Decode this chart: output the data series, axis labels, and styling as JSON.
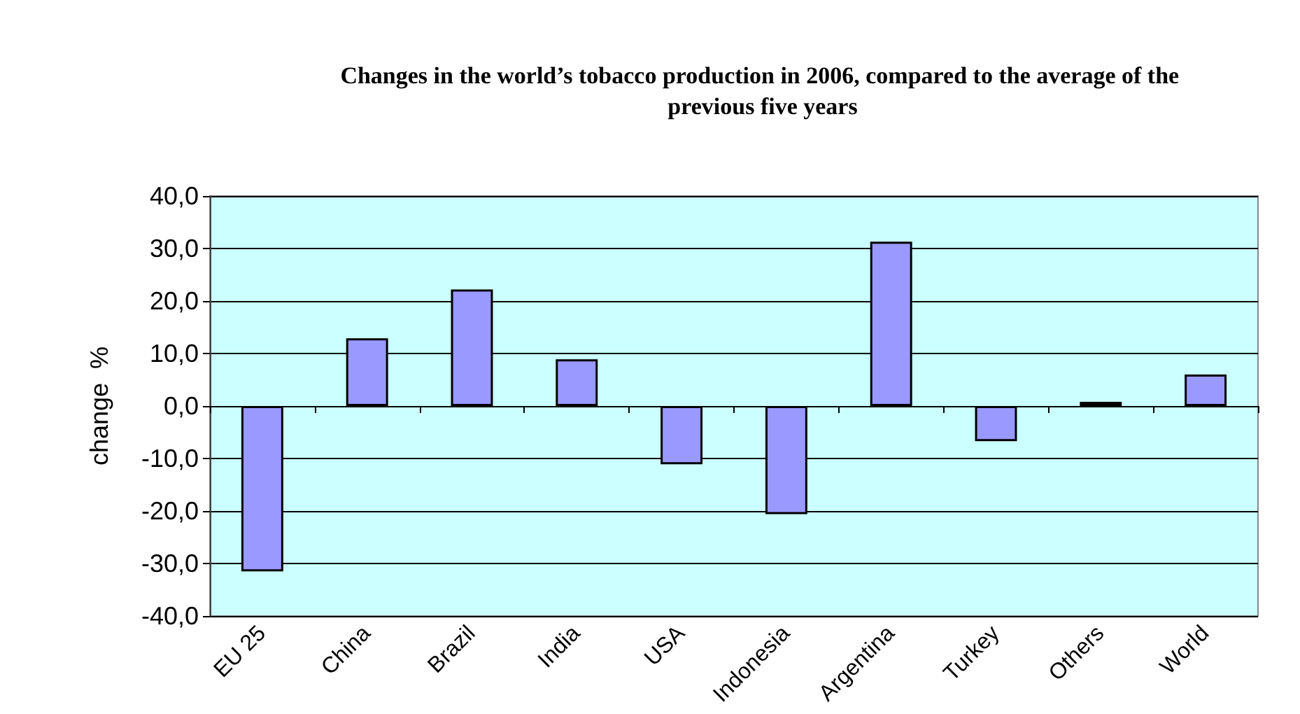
{
  "chart_data": {
    "type": "bar",
    "title": "Changes in the world’s tobacco production in 2006, compared to the average of the previous five years",
    "ylabel": "change  %",
    "categories": [
      "EU 25",
      "China",
      "Brazil",
      "India",
      "USA",
      "Indonesia",
      "Argentina",
      "Turkey",
      "Others",
      "World"
    ],
    "values": [
      -31.5,
      12.9,
      22.2,
      8.9,
      -11.1,
      -20.6,
      31.3,
      -6.7,
      0.8,
      6.0
    ],
    "color": "#9999ff",
    "ylim": [
      -40,
      40
    ],
    "yticks": [
      {
        "value": -40,
        "label": "-40,0"
      },
      {
        "value": -30,
        "label": "-30,0"
      },
      {
        "value": -20,
        "label": "-20,0"
      },
      {
        "value": -10,
        "label": "-10,0"
      },
      {
        "value": 0,
        "label": "0,0"
      },
      {
        "value": 10,
        "label": "10,0"
      },
      {
        "value": 20,
        "label": "20,0"
      },
      {
        "value": 30,
        "label": "30,0"
      },
      {
        "value": 40,
        "label": "40,0"
      }
    ],
    "grid": "y"
  }
}
